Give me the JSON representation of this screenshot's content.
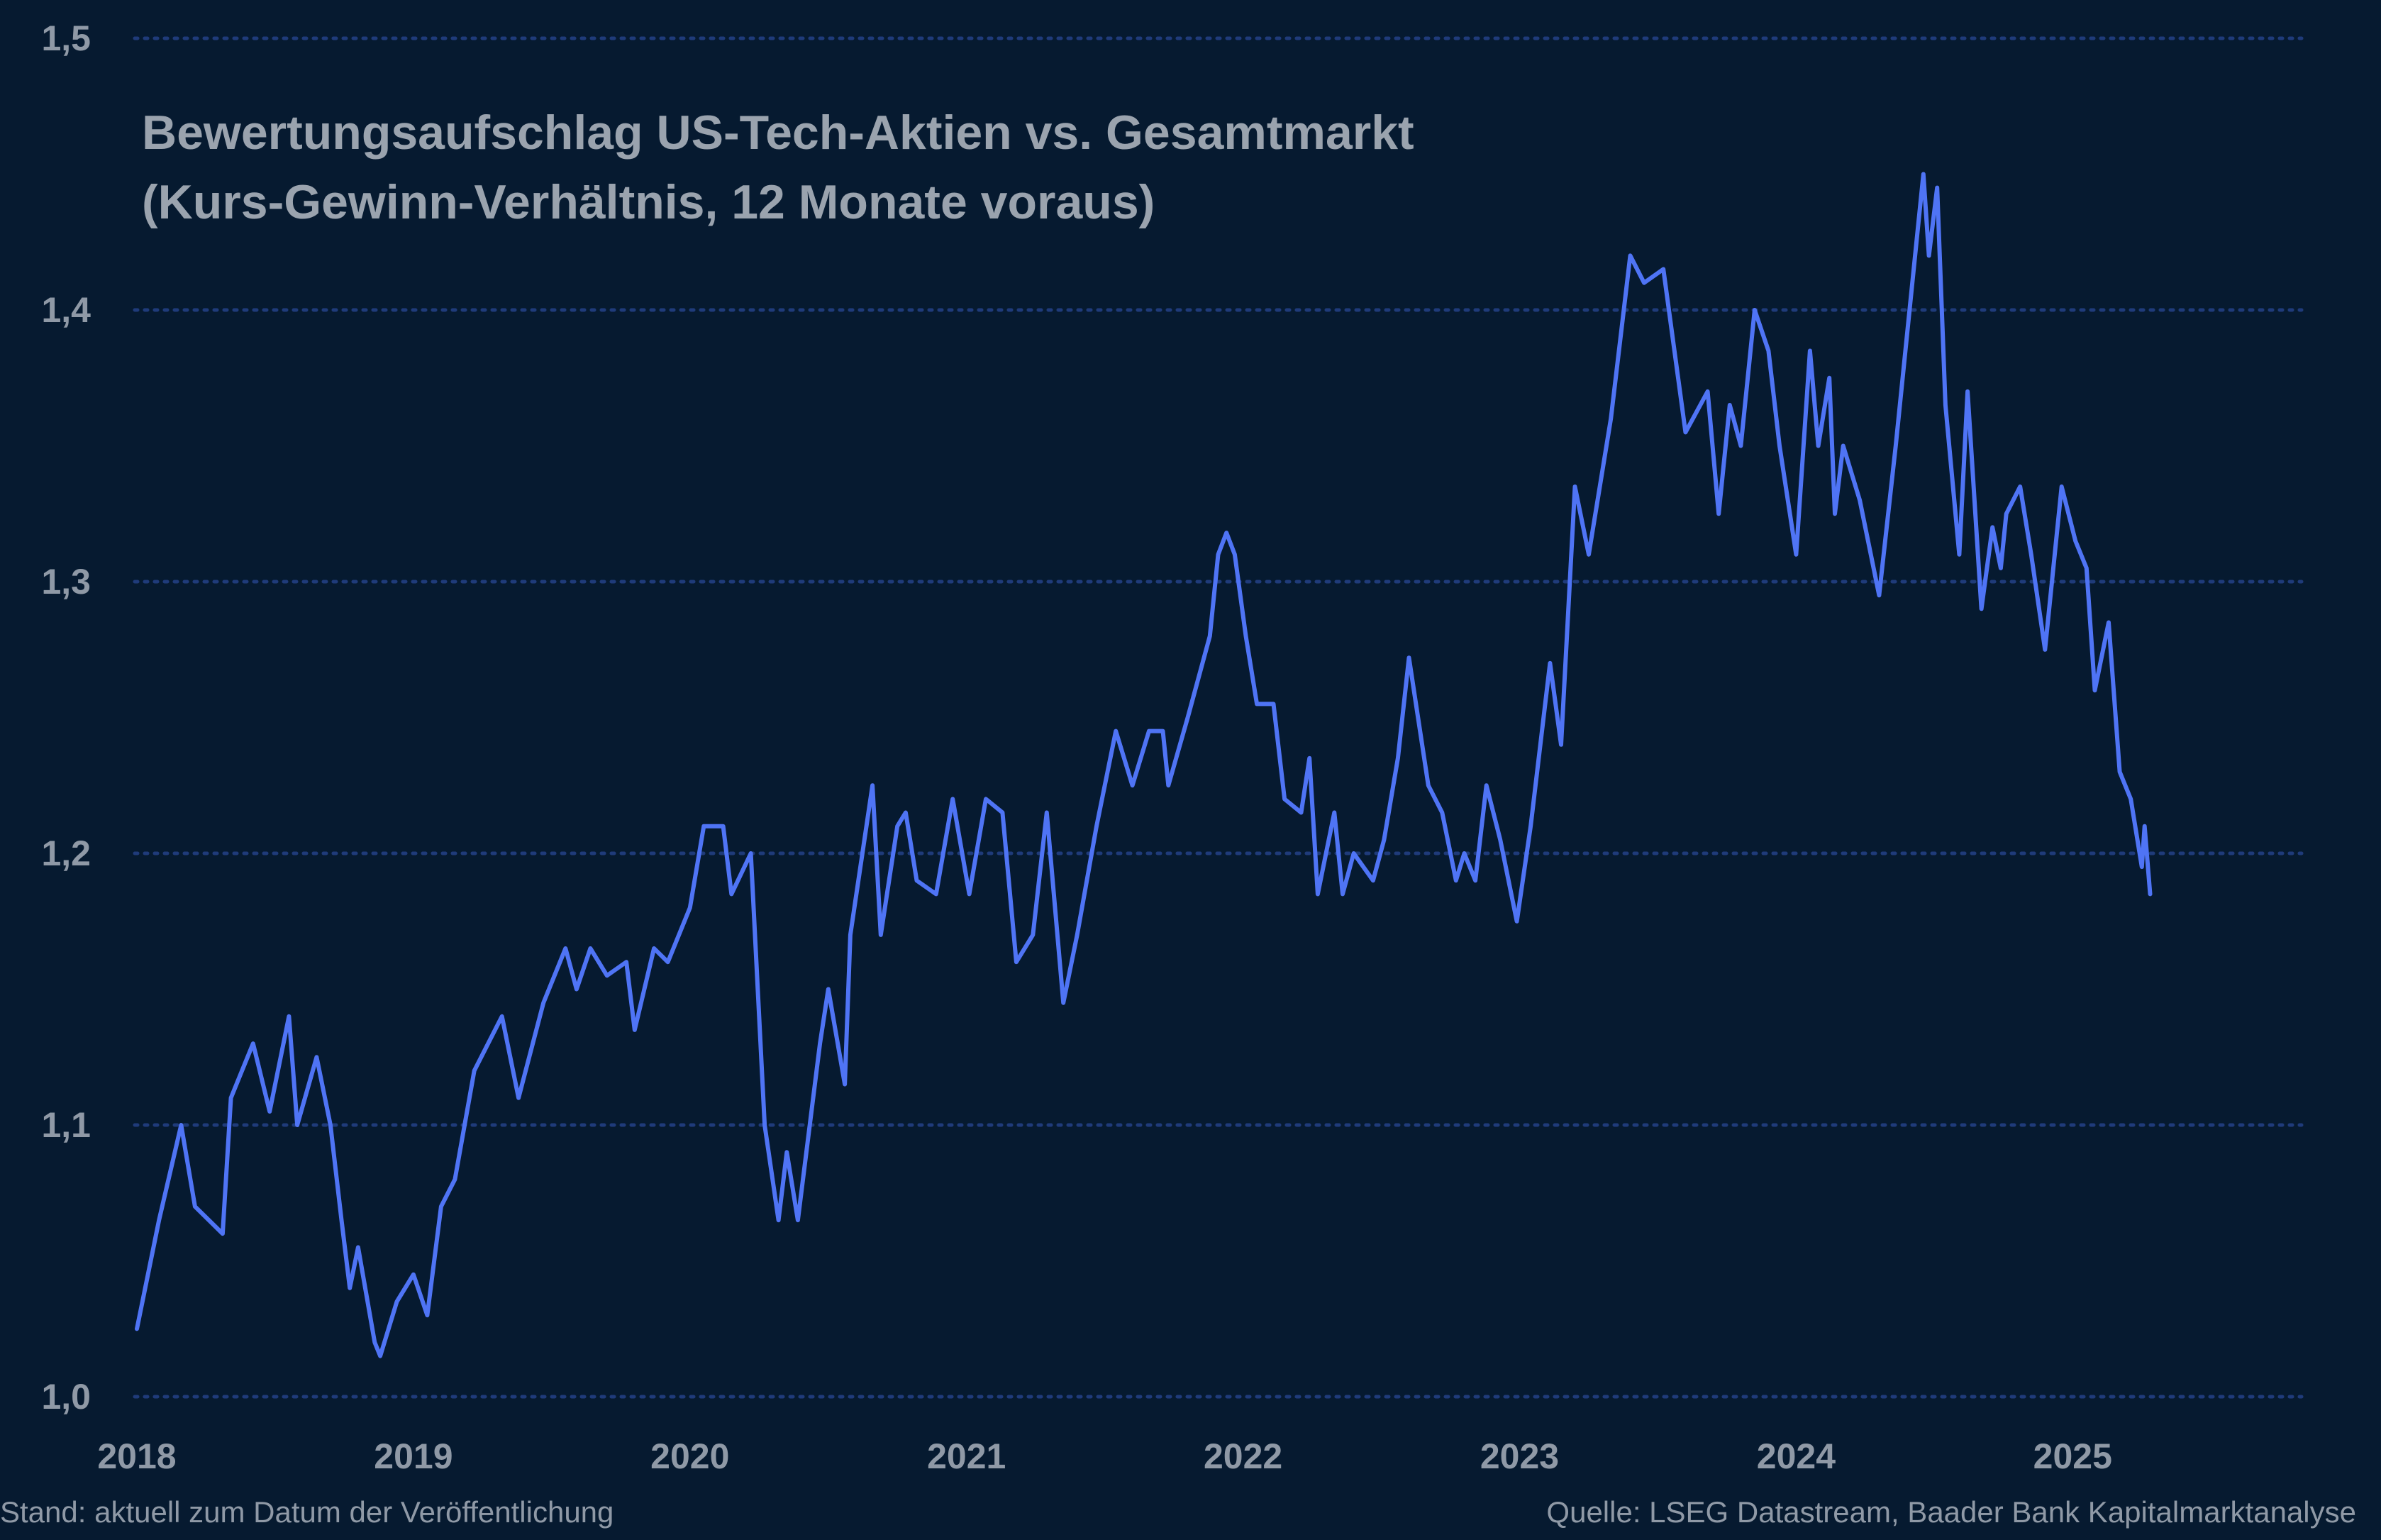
{
  "chart_data": {
    "type": "line",
    "title": "Bewertungsaufschlag US-Tech-Aktien vs. Gesamtmarkt",
    "subtitle": "(Kurs-Gewinn-Verhältnis, 12 Monate voraus)",
    "xlabel": "",
    "ylabel": "",
    "ylim": [
      1.0,
      1.5
    ],
    "xlim": [
      2018,
      2025.85
    ],
    "grid": "horizontal dotted",
    "line_color": "#4f74f5",
    "background_color": "#061a30",
    "grid_color": "#1f3b7a",
    "y_ticks": [
      "1,0",
      "1,1",
      "1,2",
      "1,3",
      "1,4",
      "1,5"
    ],
    "y_tick_values": [
      1.0,
      1.1,
      1.2,
      1.3,
      1.4,
      1.5
    ],
    "x_ticks": [
      "2018",
      "2019",
      "2020",
      "2021",
      "2022",
      "2023",
      "2024",
      "2025"
    ],
    "x_tick_values": [
      2018,
      2019,
      2020,
      2021,
      2022,
      2023,
      2024,
      2025
    ],
    "series": [
      {
        "x": [
          2018.0,
          2018.08,
          2018.16,
          2018.21,
          2018.31,
          2018.34,
          2018.42,
          2018.48,
          2018.55,
          2018.58,
          2018.65,
          2018.7,
          2018.74,
          2018.77,
          2018.8,
          2018.86,
          2018.88,
          2018.94,
          2019.0,
          2019.05,
          2019.1,
          2019.15,
          2019.22,
          2019.32,
          2019.38,
          2019.47,
          2019.55,
          2019.59,
          2019.64,
          2019.7,
          2019.77,
          2019.8,
          2019.87,
          2019.92,
          2020.0,
          2020.05,
          2020.12,
          2020.15,
          2020.22,
          2020.27,
          2020.32,
          2020.35,
          2020.39,
          2020.47,
          2020.5,
          2020.56,
          2020.58,
          2020.66,
          2020.69,
          2020.75,
          2020.78,
          2020.82,
          2020.89,
          2020.95,
          2021.01,
          2021.07,
          2021.13,
          2021.18,
          2021.24,
          2021.29,
          2021.35,
          2021.4,
          2021.47,
          2021.54,
          2021.6,
          2021.66,
          2021.71,
          2021.73,
          2021.8,
          2021.88,
          2021.91,
          2021.94,
          2021.97,
          2022.01,
          2022.05,
          2022.11,
          2022.15,
          2022.21,
          2022.24,
          2022.27,
          2022.33,
          2022.36,
          2022.4,
          2022.47,
          2022.51,
          2022.56,
          2022.6,
          2022.67,
          2022.72,
          2022.77,
          2022.8,
          2022.84,
          2022.88,
          2022.93,
          2022.99,
          2023.04,
          2023.11,
          2023.15,
          2023.2,
          2023.25,
          2023.33,
          2023.4,
          2023.45,
          2023.52,
          2023.56,
          2023.6,
          2023.68,
          2023.72,
          2023.76,
          2023.8,
          2023.85,
          2023.9,
          2023.94,
          2024.0,
          2024.05,
          2024.08,
          2024.12,
          2024.14,
          2024.17,
          2024.23,
          2024.3,
          2024.36,
          2024.4,
          2024.46,
          2024.48,
          2024.51,
          2024.54,
          2024.59,
          2024.62,
          2024.67,
          2024.71,
          2024.74,
          2024.76,
          2024.81,
          2024.85,
          2024.9,
          2024.93,
          2024.96,
          2025.01,
          2025.05,
          2025.08,
          2025.13,
          2025.17,
          2025.21,
          2025.25,
          2025.26,
          2025.28
        ],
        "values": [
          1.025,
          1.065,
          1.1,
          1.07,
          1.06,
          1.11,
          1.13,
          1.105,
          1.14,
          1.1,
          1.125,
          1.1,
          1.065,
          1.04,
          1.055,
          1.02,
          1.015,
          1.035,
          1.045,
          1.03,
          1.07,
          1.08,
          1.12,
          1.14,
          1.11,
          1.145,
          1.165,
          1.15,
          1.165,
          1.155,
          1.16,
          1.135,
          1.165,
          1.16,
          1.18,
          1.21,
          1.21,
          1.185,
          1.2,
          1.1,
          1.065,
          1.09,
          1.065,
          1.13,
          1.15,
          1.115,
          1.17,
          1.225,
          1.17,
          1.21,
          1.215,
          1.19,
          1.185,
          1.22,
          1.185,
          1.22,
          1.215,
          1.16,
          1.17,
          1.215,
          1.145,
          1.17,
          1.21,
          1.245,
          1.225,
          1.245,
          1.245,
          1.225,
          1.25,
          1.28,
          1.31,
          1.318,
          1.31,
          1.28,
          1.255,
          1.255,
          1.22,
          1.215,
          1.235,
          1.185,
          1.215,
          1.185,
          1.2,
          1.19,
          1.205,
          1.235,
          1.272,
          1.225,
          1.215,
          1.19,
          1.2,
          1.19,
          1.225,
          1.205,
          1.175,
          1.21,
          1.27,
          1.24,
          1.335,
          1.31,
          1.36,
          1.42,
          1.41,
          1.415,
          1.385,
          1.355,
          1.37,
          1.325,
          1.365,
          1.35,
          1.4,
          1.385,
          1.35,
          1.31,
          1.385,
          1.35,
          1.375,
          1.325,
          1.35,
          1.33,
          1.295,
          1.35,
          1.39,
          1.45,
          1.42,
          1.445,
          1.365,
          1.31,
          1.37,
          1.29,
          1.32,
          1.305,
          1.325,
          1.335,
          1.31,
          1.275,
          1.305,
          1.335,
          1.315,
          1.305,
          1.26,
          1.285,
          1.23,
          1.22,
          1.195,
          1.21,
          1.185
        ]
      }
    ]
  },
  "footer": {
    "left": "Stand: aktuell zum Datum der Veröffentlichung",
    "right": "Quelle: LSEG Datastream, Baader Bank Kapitalmarktanalyse"
  }
}
